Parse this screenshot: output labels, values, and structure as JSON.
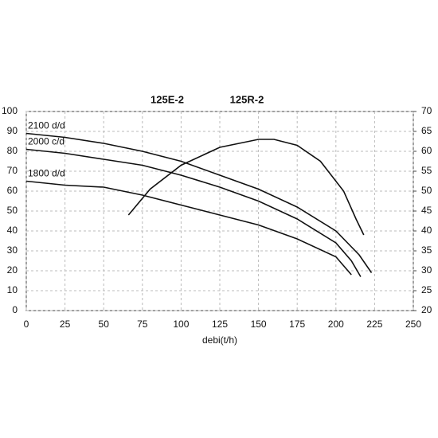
{
  "chart_data": {
    "type": "line",
    "title": "125E-2",
    "subtitle": "125R-2",
    "x_label": "debi(t/h)",
    "xlim": [
      0,
      250
    ],
    "xticks": [
      0,
      25,
      50,
      75,
      100,
      125,
      150,
      175,
      200,
      225,
      250
    ],
    "ylim": [
      0,
      100
    ],
    "yticks": [
      0,
      10,
      20,
      30,
      40,
      50,
      60,
      70,
      80,
      90,
      100
    ],
    "y2lim": [
      20,
      70
    ],
    "y2ticks": [
      20,
      25,
      30,
      35,
      40,
      45,
      50,
      55,
      60,
      65,
      70
    ],
    "grid": true,
    "series": [
      {
        "name": "2100 d/d",
        "color": "#111111",
        "x": [
          0,
          25,
          50,
          75,
          100,
          125,
          150,
          175,
          200,
          215,
          223
        ],
        "values": [
          89,
          87,
          84,
          80,
          75,
          68,
          61,
          52,
          40,
          28,
          19
        ]
      },
      {
        "name": "2000 c/d",
        "color": "#111111",
        "x": [
          0,
          25,
          50,
          75,
          100,
          125,
          150,
          175,
          200,
          210,
          216
        ],
        "values": [
          81,
          79,
          76,
          73,
          68,
          62,
          55,
          46,
          34,
          25,
          17
        ]
      },
      {
        "name": "1800 d/d",
        "color": "#111111",
        "x": [
          0,
          25,
          50,
          75,
          100,
          125,
          150,
          175,
          200,
          210
        ],
        "values": [
          65,
          63,
          62,
          58,
          53,
          48,
          43,
          36,
          27,
          18
        ]
      },
      {
        "color": "#111111",
        "axis": "y2",
        "x": [
          66,
          80,
          100,
          125,
          150,
          160,
          175,
          190,
          205,
          213,
          218
        ],
        "values": [
          44,
          50.5,
          56.5,
          61,
          63,
          63,
          61.5,
          57.5,
          50,
          43,
          39
        ]
      }
    ]
  }
}
